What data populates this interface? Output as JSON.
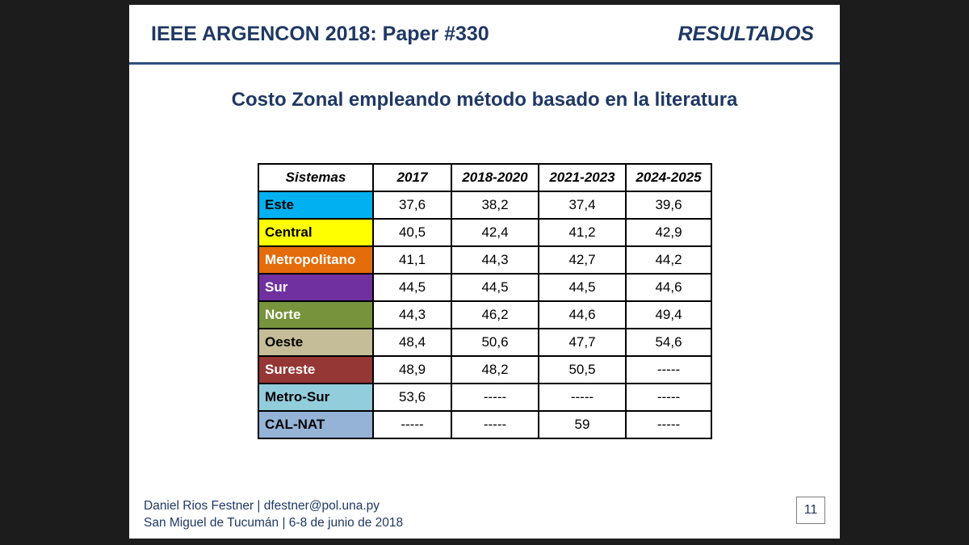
{
  "header": {
    "title": "IEEE ARGENCON 2018: Paper #330",
    "section": "RESULTADOS"
  },
  "subtitle": "Costo Zonal empleando método basado en la literatura",
  "table": {
    "headers": [
      "Sistemas",
      "2017",
      "2018-2020",
      "2021-2023",
      "2024-2025"
    ],
    "rows": [
      {
        "name": "Este",
        "color": "#00b0f0",
        "text_color": "#000000",
        "values": [
          "37,6",
          "38,2",
          "37,4",
          "39,6"
        ]
      },
      {
        "name": "Central",
        "color": "#ffff00",
        "text_color": "#000000",
        "values": [
          "40,5",
          "42,4",
          "41,2",
          "42,9"
        ]
      },
      {
        "name": "Metropolitano",
        "color": "#e46c0a",
        "text_color": "#ffffff",
        "values": [
          "41,1",
          "44,3",
          "42,7",
          "44,2"
        ]
      },
      {
        "name": "Sur",
        "color": "#7030a0",
        "text_color": "#ffffff",
        "values": [
          "44,5",
          "44,5",
          "44,5",
          "44,6"
        ]
      },
      {
        "name": "Norte",
        "color": "#77933c",
        "text_color": "#ffffff",
        "values": [
          "44,3",
          "46,2",
          "44,6",
          "49,4"
        ]
      },
      {
        "name": "Oeste",
        "color": "#c4bd97",
        "text_color": "#000000",
        "values": [
          "48,4",
          "50,6",
          "47,7",
          "54,6"
        ]
      },
      {
        "name": "Sureste",
        "color": "#953735",
        "text_color": "#ffffff",
        "values": [
          "48,9",
          "48,2",
          "50,5",
          "-----"
        ]
      },
      {
        "name": "Metro-Sur",
        "color": "#92cddc",
        "text_color": "#000000",
        "values": [
          "53,6",
          "-----",
          "-----",
          "-----"
        ]
      },
      {
        "name": "CAL-NAT",
        "color": "#95b3d7",
        "text_color": "#000000",
        "values": [
          "-----",
          "-----",
          "59",
          "-----"
        ]
      }
    ]
  },
  "footer": {
    "line1": "Daniel Rios Festner | dfestner@pol.una.py",
    "line2": "San Miguel de Tucumán | 6-8 de junio de 2018",
    "page_number": "11"
  }
}
